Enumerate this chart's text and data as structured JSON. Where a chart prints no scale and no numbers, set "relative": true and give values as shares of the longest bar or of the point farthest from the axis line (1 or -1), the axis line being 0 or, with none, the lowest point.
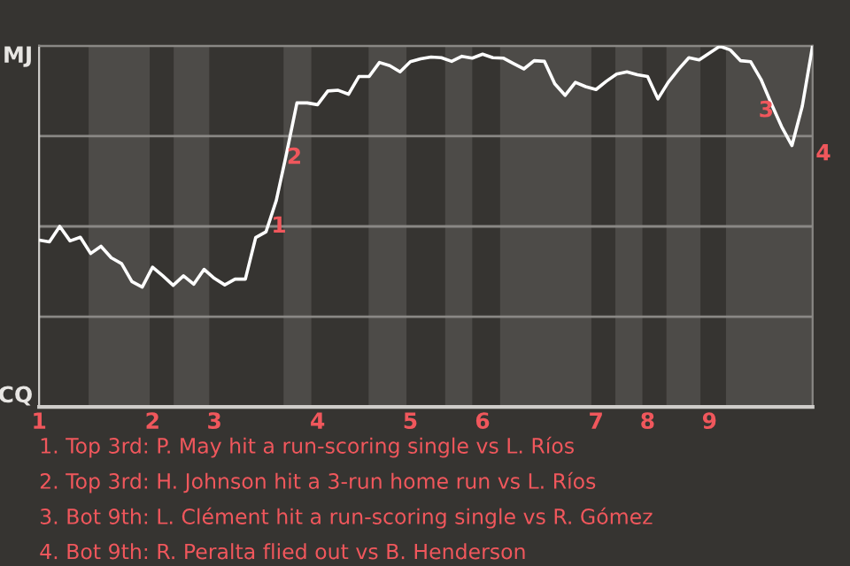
{
  "chart_data": {
    "type": "line",
    "relative": true,
    "categories": [
      "1",
      null,
      null,
      null,
      null,
      null,
      null,
      null,
      null,
      null,
      null,
      "2",
      null,
      null,
      null,
      null,
      null,
      "3",
      null,
      null,
      null,
      null,
      null,
      null,
      null,
      null,
      null,
      "4",
      null,
      null,
      null,
      null,
      null,
      null,
      null,
      null,
      "5",
      null,
      null,
      null,
      null,
      null,
      null,
      "6",
      null,
      null,
      null,
      null,
      null,
      null,
      null,
      null,
      null,
      null,
      "7",
      null,
      null,
      null,
      null,
      "8",
      null,
      null,
      null,
      null,
      null,
      "9",
      null,
      null,
      null,
      null,
      null,
      null,
      null,
      null,
      null,
      null
    ],
    "series": [
      {
        "color": "#ffffff",
        "values": [
          0.462,
          0.457,
          0.5,
          0.46,
          0.47,
          0.425,
          0.445,
          0.413,
          0.397,
          0.347,
          0.332,
          0.387,
          0.363,
          0.337,
          0.363,
          0.34,
          0.381,
          0.356,
          0.338,
          0.354,
          0.354,
          0.469,
          0.485,
          0.572,
          0.703,
          0.842,
          0.842,
          0.837,
          0.875,
          0.877,
          0.866,
          0.915,
          0.915,
          0.954,
          0.945,
          0.928,
          0.956,
          0.964,
          0.969,
          0.967,
          0.957,
          0.971,
          0.966,
          0.977,
          0.967,
          0.966,
          0.951,
          0.936,
          0.959,
          0.957,
          0.895,
          0.863,
          0.899,
          0.887,
          0.879,
          0.902,
          0.922,
          0.928,
          0.92,
          0.915,
          0.853,
          0.899,
          0.935,
          0.967,
          0.961,
          0.98,
          0.999,
          0.989,
          0.959,
          0.956,
          0.907,
          0.84,
          0.776,
          0.724,
          0.833,
          1.0
        ]
      }
    ],
    "grid": "y",
    "annotations": [
      "1",
      "2",
      "3",
      "4",
      "MJ",
      "CQ",
      "1. Top 3rd: P. May hit a run-scoring single vs L. Ríos",
      "2. Top 3rd: H. Johnson hit a 3-run home run vs L. Ríos",
      "3. Bot 9th: L. Clément hit a run-scoring single vs R. Gómez",
      "4. Bot 9th: R. Peralta flied out vs B. Henderson"
    ]
  }
}
